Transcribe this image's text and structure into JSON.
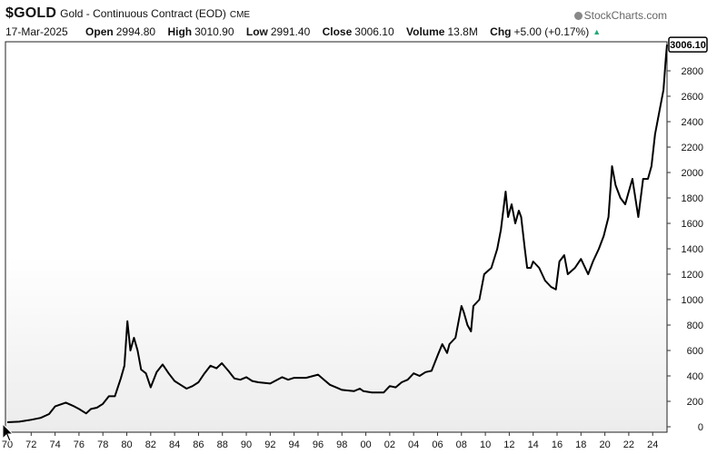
{
  "header": {
    "symbol": "$GOLD",
    "description": "Gold - Continuous Contract (EOD)",
    "exchange": "CME",
    "brand": "StockCharts.com",
    "date": "17-Mar-2025",
    "open_label": "Open",
    "open": "2994.80",
    "high_label": "High",
    "high": "3010.90",
    "low_label": "Low",
    "low": "2991.40",
    "close_label": "Close",
    "close": "3006.10",
    "volume_label": "Volume",
    "volume": "13.8M",
    "chg_label": "Chg",
    "chg": "+5.00 (+0.17%)"
  },
  "colors": {
    "line": "#000000",
    "axis": "#333333",
    "background_top": "#ffffff",
    "background_bottom": "#ececec"
  },
  "chart_data": {
    "type": "line",
    "title": "",
    "xlabel": "",
    "ylabel": "",
    "xlim": [
      1970,
      2025.2
    ],
    "ylim": [
      0,
      3000
    ],
    "yticks": [
      0,
      200,
      400,
      600,
      800,
      1000,
      1200,
      1400,
      1600,
      1800,
      2000,
      2200,
      2400,
      2600,
      2800
    ],
    "xtick_labels": [
      "70",
      "72",
      "74",
      "76",
      "78",
      "80",
      "82",
      "84",
      "86",
      "88",
      "90",
      "92",
      "94",
      "96",
      "98",
      "00",
      "02",
      "04",
      "06",
      "08",
      "10",
      "12",
      "14",
      "16",
      "18",
      "20",
      "22",
      "24"
    ],
    "last_value_label": "3006.10",
    "grid": false,
    "series": [
      {
        "x": [
          1970.0,
          1971.0,
          1972.0,
          1972.8,
          1973.5,
          1974.0,
          1974.9,
          1975.5,
          1976.0,
          1976.6,
          1977.0,
          1977.5,
          1978.0,
          1978.5,
          1979.0,
          1979.5,
          1979.8,
          1980.05,
          1980.3,
          1980.6,
          1980.9,
          1981.2,
          1981.6,
          1982.0,
          1982.5,
          1983.0,
          1983.5,
          1984.0,
          1984.5,
          1985.0,
          1985.5,
          1986.0,
          1986.5,
          1987.0,
          1987.5,
          1987.95,
          1988.5,
          1989.0,
          1989.5,
          1990.0,
          1990.5,
          1991.0,
          1992.0,
          1993.0,
          1993.5,
          1994.0,
          1995.0,
          1996.0,
          1996.5,
          1997.0,
          1997.5,
          1998.0,
          1999.0,
          1999.5,
          1999.8,
          2000.5,
          2001.0,
          2001.5,
          2002.0,
          2002.5,
          2003.0,
          2003.5,
          2004.0,
          2004.5,
          2005.0,
          2005.5,
          2006.0,
          2006.4,
          2006.8,
          2007.0,
          2007.5,
          2008.0,
          2008.2,
          2008.5,
          2008.8,
          2009.0,
          2009.5,
          2009.9,
          2010.5,
          2011.0,
          2011.3,
          2011.7,
          2011.9,
          2012.2,
          2012.5,
          2012.8,
          2013.0,
          2013.3,
          2013.5,
          2013.8,
          2014.0,
          2014.5,
          2015.0,
          2015.5,
          2015.9,
          2016.2,
          2016.6,
          2016.9,
          2017.5,
          2018.0,
          2018.6,
          2019.0,
          2019.5,
          2019.9,
          2020.3,
          2020.6,
          2020.9,
          2021.3,
          2021.7,
          2022.0,
          2022.3,
          2022.8,
          2023.2,
          2023.6,
          2023.9,
          2024.2,
          2024.6,
          2024.9,
          2025.1,
          2025.2
        ],
        "values": [
          36,
          40,
          55,
          70,
          100,
          160,
          190,
          165,
          140,
          105,
          140,
          150,
          180,
          240,
          240,
          380,
          480,
          830,
          600,
          700,
          600,
          450,
          420,
          310,
          430,
          490,
          420,
          360,
          330,
          300,
          320,
          350,
          420,
          480,
          460,
          500,
          440,
          380,
          370,
          390,
          360,
          350,
          340,
          390,
          370,
          385,
          385,
          410,
          370,
          330,
          310,
          290,
          280,
          300,
          280,
          270,
          270,
          270,
          320,
          310,
          350,
          370,
          420,
          400,
          430,
          440,
          560,
          650,
          580,
          650,
          700,
          950,
          900,
          800,
          750,
          950,
          1000,
          1200,
          1250,
          1400,
          1550,
          1850,
          1650,
          1750,
          1600,
          1700,
          1650,
          1400,
          1250,
          1250,
          1300,
          1250,
          1150,
          1100,
          1080,
          1300,
          1350,
          1200,
          1250,
          1320,
          1200,
          1300,
          1400,
          1500,
          1650,
          2050,
          1900,
          1800,
          1750,
          1850,
          1950,
          1650,
          1950,
          1950,
          2050,
          2300,
          2500,
          2650,
          2900,
          3006
        ]
      }
    ]
  }
}
